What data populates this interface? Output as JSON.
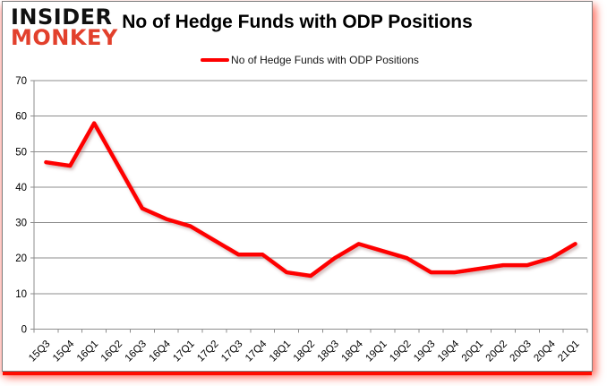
{
  "logo": {
    "line1": "INSIDER",
    "line2": "MONKEY"
  },
  "header": {
    "title": "No of Hedge Funds with ODP Positions"
  },
  "legend": {
    "label": "No of Hedge Funds with ODP Positions"
  },
  "chart_data": {
    "type": "line",
    "title": "No of Hedge Funds with ODP Positions",
    "series": [
      {
        "name": "No of Hedge Funds with ODP Positions",
        "values": [
          47,
          46,
          58,
          46,
          34,
          31,
          29,
          25,
          21,
          21,
          16,
          15,
          20,
          24,
          22,
          20,
          16,
          16,
          17,
          18,
          18,
          20,
          24
        ]
      }
    ],
    "categories": [
      "15Q3",
      "15Q4",
      "16Q1",
      "16Q2",
      "16Q3",
      "16Q4",
      "17Q1",
      "17Q2",
      "17Q3",
      "17Q4",
      "18Q1",
      "18Q2",
      "18Q3",
      "18Q4",
      "19Q1",
      "19Q2",
      "19Q3",
      "19Q4",
      "20Q1",
      "20Q2",
      "20Q3",
      "20Q4",
      "21Q1"
    ],
    "xlabel": "",
    "ylabel": "",
    "ylim": [
      0,
      70
    ],
    "ytick_step": 10,
    "yticks": [
      0,
      10,
      20,
      30,
      40,
      50,
      60,
      70
    ],
    "grid": true,
    "legend_position": "top",
    "line_color": "#fe0000",
    "gridline_color": "#8c8c8c",
    "axis_label_color": "#000000"
  },
  "colors": {
    "accent_red": "#fe0000",
    "logo_red": "#e2402c",
    "card_border_gray": "#7f7f7f",
    "glow_red": "#ff0c00"
  }
}
